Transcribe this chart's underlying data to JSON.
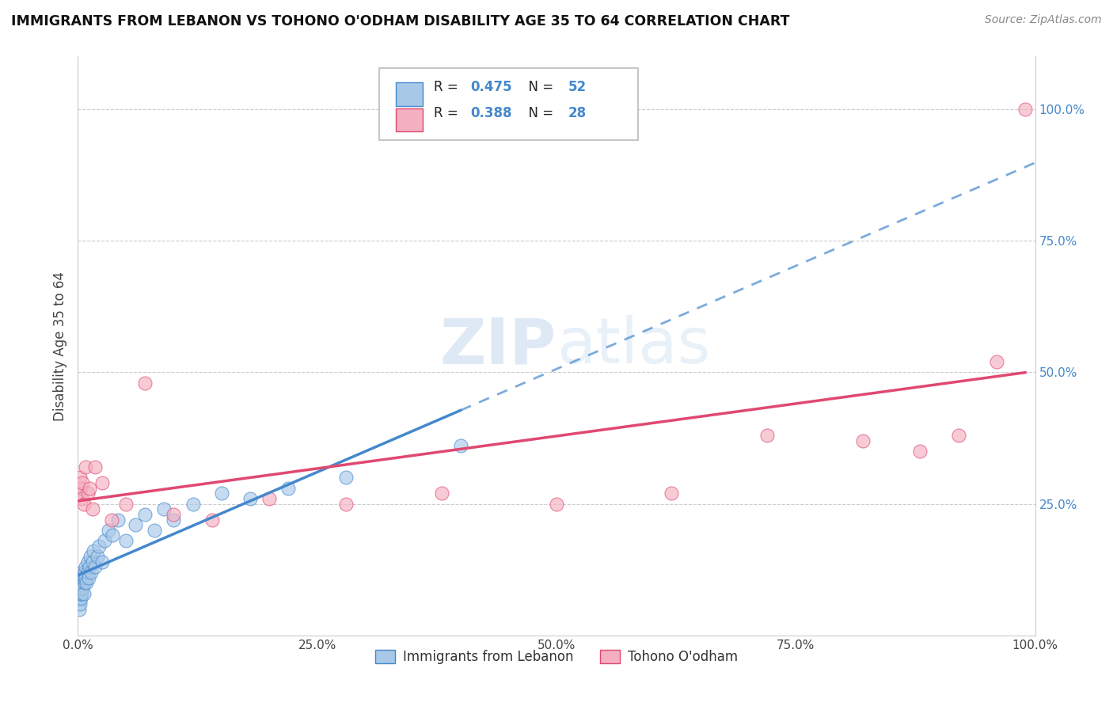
{
  "title": "IMMIGRANTS FROM LEBANON VS TOHONO O'ODHAM DISABILITY AGE 35 TO 64 CORRELATION CHART",
  "source": "Source: ZipAtlas.com",
  "ylabel": "Disability Age 35 to 64",
  "legend_label1": "Immigrants from Lebanon",
  "legend_label2": "Tohono O'odham",
  "R1": 0.475,
  "N1": 52,
  "R2": 0.388,
  "N2": 28,
  "color1": "#a8c8e8",
  "color2": "#f4b0c0",
  "line_color1": "#4488cc",
  "line_color2": "#e04870",
  "right_tick_color": "#4488cc",
  "watermark_zip": "ZIP",
  "watermark_atlas": "atlas",
  "blue_x": [
    0.001,
    0.001,
    0.001,
    0.002,
    0.002,
    0.002,
    0.002,
    0.003,
    0.003,
    0.003,
    0.003,
    0.004,
    0.004,
    0.004,
    0.005,
    0.005,
    0.005,
    0.006,
    0.006,
    0.007,
    0.007,
    0.008,
    0.008,
    0.009,
    0.01,
    0.01,
    0.011,
    0.012,
    0.013,
    0.014,
    0.015,
    0.016,
    0.018,
    0.02,
    0.022,
    0.025,
    0.028,
    0.032,
    0.036,
    0.042,
    0.05,
    0.06,
    0.07,
    0.08,
    0.09,
    0.1,
    0.12,
    0.15,
    0.18,
    0.22,
    0.28,
    0.4
  ],
  "blue_y": [
    0.05,
    0.07,
    0.09,
    0.06,
    0.08,
    0.1,
    0.11,
    0.07,
    0.09,
    0.08,
    0.1,
    0.09,
    0.11,
    0.08,
    0.1,
    0.12,
    0.09,
    0.11,
    0.08,
    0.1,
    0.12,
    0.11,
    0.13,
    0.1,
    0.12,
    0.14,
    0.11,
    0.13,
    0.15,
    0.12,
    0.14,
    0.16,
    0.13,
    0.15,
    0.17,
    0.14,
    0.18,
    0.2,
    0.19,
    0.22,
    0.18,
    0.21,
    0.23,
    0.2,
    0.24,
    0.22,
    0.25,
    0.27,
    0.26,
    0.28,
    0.3,
    0.36
  ],
  "pink_x": [
    0.001,
    0.002,
    0.003,
    0.004,
    0.005,
    0.006,
    0.008,
    0.01,
    0.012,
    0.015,
    0.018,
    0.025,
    0.035,
    0.05,
    0.07,
    0.1,
    0.14,
    0.2,
    0.28,
    0.38,
    0.5,
    0.62,
    0.72,
    0.82,
    0.88,
    0.92,
    0.96,
    0.99
  ],
  "pink_y": [
    0.27,
    0.3,
    0.28,
    0.26,
    0.29,
    0.25,
    0.32,
    0.27,
    0.28,
    0.24,
    0.32,
    0.29,
    0.22,
    0.25,
    0.48,
    0.23,
    0.22,
    0.26,
    0.25,
    0.27,
    0.25,
    0.27,
    0.38,
    0.37,
    0.35,
    0.38,
    0.52,
    1.0
  ],
  "xlim": [
    0.0,
    1.0
  ],
  "ylim": [
    0.0,
    1.1
  ],
  "xticks": [
    0.0,
    0.25,
    0.5,
    0.75,
    1.0
  ],
  "xticklabels": [
    "0.0%",
    "25.0%",
    "50.0%",
    "75.0%",
    "100.0%"
  ],
  "yticks_right": [
    0.25,
    0.5,
    0.75,
    1.0
  ],
  "yticklabels_right": [
    "25.0%",
    "50.0%",
    "75.0%",
    "100.0%"
  ],
  "grid_yticks": [
    0.25,
    0.5,
    0.75,
    1.0
  ],
  "background_color": "#ffffff",
  "grid_color": "#cccccc"
}
